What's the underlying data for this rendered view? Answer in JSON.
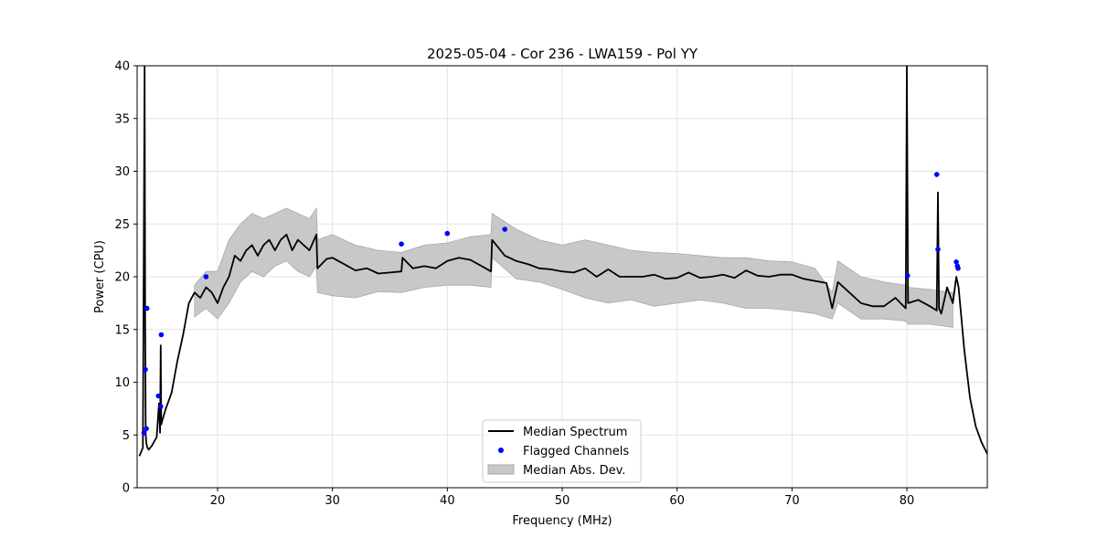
{
  "chart_data": {
    "type": "line",
    "title": "2025-05-04 - Cor 236 - LWA159 - Pol YY",
    "xlabel": "Frequency (MHz)",
    "ylabel": "Power (CPU)",
    "xlim": [
      13,
      87
    ],
    "ylim": [
      0,
      40
    ],
    "xticks": [
      20,
      30,
      40,
      50,
      60,
      70,
      80
    ],
    "yticks": [
      0,
      5,
      10,
      15,
      20,
      25,
      30,
      35,
      40
    ],
    "grid": true,
    "legend_position": "bottom-center",
    "series": [
      {
        "name": "Median Spectrum",
        "kind": "line",
        "color": "#000000",
        "x": [
          13.2,
          13.5,
          13.65,
          13.7,
          13.75,
          13.8,
          13.85,
          13.9,
          14.0,
          14.3,
          14.7,
          14.9,
          15.0,
          15.05,
          15.1,
          15.2,
          15.5,
          16.0,
          16.5,
          17.0,
          17.5,
          18.0,
          18.5,
          19.0,
          19.5,
          20.0,
          20.5,
          21.0,
          21.5,
          22.0,
          22.5,
          23.0,
          23.5,
          24.0,
          24.5,
          25.0,
          25.5,
          26.0,
          26.5,
          27.0,
          27.5,
          28.0,
          28.6,
          28.7,
          29.5,
          30.0,
          31.0,
          32.0,
          33.0,
          34.0,
          35.0,
          36.0,
          36.1,
          37.0,
          38.0,
          39.0,
          40.0,
          41.0,
          42.0,
          43.0,
          43.8,
          43.9,
          45.0,
          46.0,
          47.0,
          48.0,
          49.0,
          50.0,
          51.0,
          52.0,
          53.0,
          54.0,
          55.0,
          56.0,
          57.0,
          58.0,
          59.0,
          60.0,
          61.0,
          62.0,
          63.0,
          64.0,
          65.0,
          66.0,
          67.0,
          68.0,
          69.0,
          70.0,
          71.0,
          72.0,
          73.0,
          73.5,
          74.0,
          75.0,
          76.0,
          77.0,
          78.0,
          79.0,
          79.9,
          80.0,
          80.1,
          81.0,
          82.0,
          82.6,
          82.7,
          82.8,
          83.0,
          83.5,
          84.0,
          84.3,
          84.5,
          85.0,
          85.5,
          86.0,
          86.5,
          87.0
        ],
        "y": [
          3.0,
          3.8,
          40.0,
          16.0,
          5.0,
          4.2,
          4.0,
          3.8,
          3.6,
          4.0,
          4.8,
          8.0,
          5.2,
          13.5,
          6.0,
          6.4,
          7.5,
          9.0,
          12.0,
          14.5,
          17.5,
          18.5,
          18.0,
          19.0,
          18.5,
          17.5,
          19.0,
          20.0,
          22.0,
          21.5,
          22.5,
          23.0,
          22.0,
          23.0,
          23.5,
          22.5,
          23.5,
          24.0,
          22.5,
          23.5,
          23.0,
          22.5,
          24.0,
          20.8,
          21.7,
          21.8,
          21.2,
          20.6,
          20.8,
          20.3,
          20.4,
          20.5,
          21.8,
          20.8,
          21.0,
          20.8,
          21.5,
          21.8,
          21.6,
          21.0,
          20.5,
          23.5,
          22.0,
          21.5,
          21.2,
          20.8,
          20.7,
          20.5,
          20.4,
          20.8,
          20.0,
          20.7,
          20.0,
          20.0,
          20.0,
          20.2,
          19.8,
          19.9,
          20.4,
          19.9,
          20.0,
          20.2,
          19.9,
          20.6,
          20.1,
          20.0,
          20.2,
          20.2,
          19.8,
          19.6,
          19.4,
          17.0,
          19.5,
          18.5,
          17.5,
          17.2,
          17.2,
          18.0,
          17.0,
          40.0,
          17.5,
          17.8,
          17.2,
          16.8,
          28.0,
          17.0,
          16.5,
          19.0,
          17.5,
          20.0,
          19.0,
          13.0,
          8.5,
          5.8,
          4.3,
          3.2
        ]
      },
      {
        "name": "Flagged Channels",
        "kind": "scatter",
        "color": "#0000ff",
        "x": [
          13.6,
          13.72,
          13.85,
          13.8,
          14.85,
          15.05,
          15.1,
          19.0,
          36.0,
          40.0,
          45.0,
          80.05,
          82.6,
          82.7,
          84.3,
          84.4,
          84.45
        ],
        "y": [
          5.2,
          11.2,
          17.0,
          5.6,
          8.7,
          7.7,
          14.5,
          20.0,
          23.1,
          24.1,
          24.5,
          20.1,
          29.7,
          22.6,
          21.4,
          21.0,
          20.8
        ]
      },
      {
        "name": "Median Abs. Dev.",
        "kind": "band",
        "color": "#c8c8c8",
        "x": [
          18.0,
          19.0,
          20.0,
          21.0,
          22.0,
          23.0,
          24.0,
          25.0,
          26.0,
          27.0,
          28.0,
          28.6,
          28.7,
          30.0,
          32.0,
          34.0,
          36.0,
          38.0,
          40.0,
          42.0,
          43.8,
          43.9,
          46.0,
          48.0,
          50.0,
          52.0,
          54.0,
          56.0,
          58.0,
          60.0,
          62.0,
          64.0,
          66.0,
          68.0,
          70.0,
          72.0,
          73.5,
          74.0,
          76.0,
          78.0,
          79.9,
          80.1,
          82.0,
          84.0
        ],
        "lower": [
          16.2,
          17.0,
          16.0,
          17.5,
          19.5,
          20.5,
          20.0,
          21.0,
          21.5,
          20.5,
          20.0,
          21.0,
          18.5,
          18.2,
          18.0,
          18.6,
          18.5,
          19.0,
          19.2,
          19.2,
          19.0,
          21.8,
          19.8,
          19.5,
          18.8,
          18.0,
          17.5,
          17.8,
          17.2,
          17.5,
          17.8,
          17.5,
          17.0,
          17.0,
          16.8,
          16.5,
          16.0,
          17.5,
          16.0,
          16.0,
          15.8,
          15.5,
          15.5,
          15.2
        ],
        "upper": [
          19.2,
          20.5,
          20.5,
          23.5,
          25.0,
          26.0,
          25.5,
          26.0,
          26.5,
          26.0,
          25.5,
          26.5,
          23.5,
          24.0,
          23.0,
          22.5,
          22.3,
          23.0,
          23.2,
          23.8,
          24.0,
          26.0,
          24.5,
          23.5,
          23.0,
          23.5,
          23.0,
          22.5,
          22.3,
          22.2,
          22.0,
          21.8,
          21.8,
          21.5,
          21.4,
          20.8,
          18.5,
          21.5,
          20.0,
          19.5,
          19.2,
          19.0,
          18.8,
          18.5
        ]
      }
    ]
  }
}
